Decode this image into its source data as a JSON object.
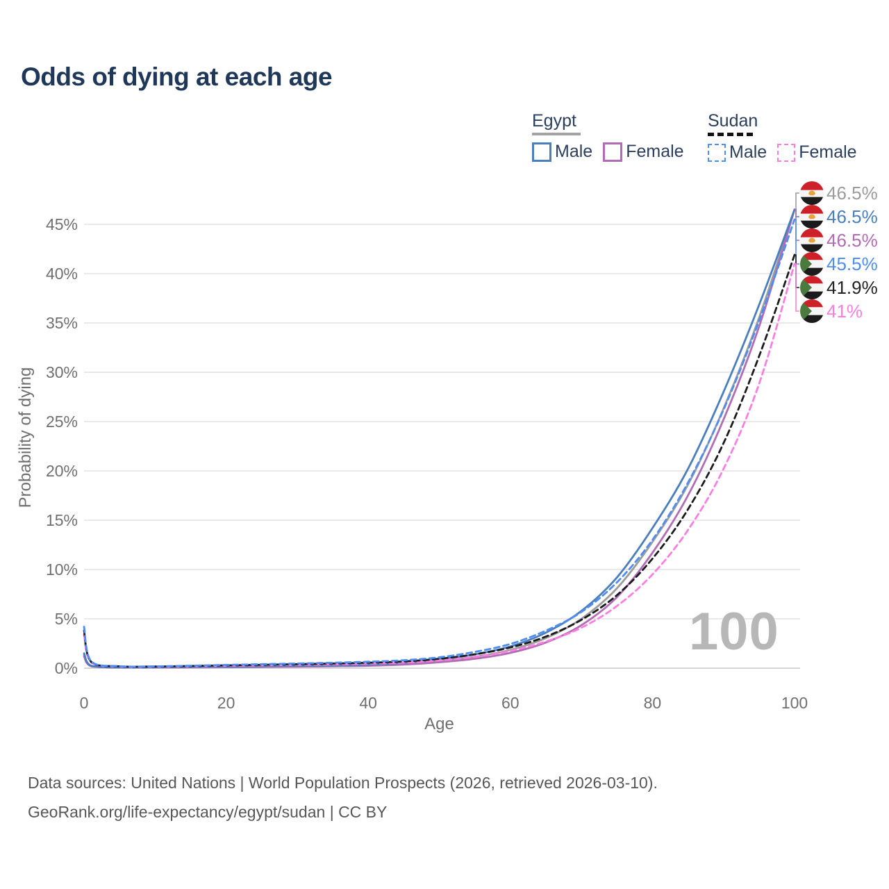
{
  "page": {
    "title": "Odds of dying at each age"
  },
  "legend": {
    "groups": [
      {
        "id": "egypt",
        "label": "Egypt",
        "line_style": "solid",
        "line_color": "#a3a3a3",
        "items": [
          {
            "label": "Male",
            "color": "#4a7ebc",
            "dashed": false
          },
          {
            "label": "Female",
            "color": "#b16cb5",
            "dashed": false
          }
        ]
      },
      {
        "id": "sudan",
        "label": "Sudan",
        "line_style": "dashed",
        "line_color": "#111111",
        "items": [
          {
            "label": "Male",
            "color": "#4f8df2",
            "dashed": true
          },
          {
            "label": "Female",
            "color": "#fc7ee0",
            "dashed": true
          }
        ]
      }
    ]
  },
  "watermark_age": "100",
  "footer": {
    "line1": "Data sources: United Nations | World Population Prospects (2026, retrieved 2026-03-10).",
    "line2": "GeoRank.org/life-expectancy/egypt/sudan | CC BY"
  },
  "chart_data": {
    "type": "line",
    "title": "Odds of dying at each age",
    "xlabel": "Age",
    "ylabel": "Probability of dying",
    "xlim": [
      0,
      100
    ],
    "ylim": [
      0,
      48
    ],
    "xticks": [
      0,
      20,
      40,
      60,
      80,
      100
    ],
    "yticks": [
      {
        "v": 0,
        "label": "0%"
      },
      {
        "v": 5,
        "label": "5%"
      },
      {
        "v": 10,
        "label": "10%"
      },
      {
        "v": 15,
        "label": "15%"
      },
      {
        "v": 20,
        "label": "20%"
      },
      {
        "v": 25,
        "label": "25%"
      },
      {
        "v": 30,
        "label": "30%"
      },
      {
        "v": 35,
        "label": "35%"
      },
      {
        "v": 40,
        "label": "40%"
      },
      {
        "v": 45,
        "label": "45%"
      }
    ],
    "grid": "horizontal",
    "legend_position": "top-right",
    "ages": [
      0,
      1,
      5,
      10,
      15,
      20,
      25,
      30,
      35,
      40,
      45,
      50,
      55,
      60,
      65,
      70,
      75,
      80,
      85,
      90,
      95,
      100
    ],
    "series": [
      {
        "id": "egypt-both",
        "name": "Egypt Both sexes",
        "country": "Egypt",
        "sex": "both",
        "color": "#9c9c9c",
        "label_color": "#9c9c9c",
        "dashed": false,
        "flag": "egypt",
        "end_label": "46.5%",
        "values": [
          1.35,
          0.22,
          0.07,
          0.08,
          0.1,
          0.13,
          0.16,
          0.19,
          0.23,
          0.29,
          0.45,
          0.75,
          1.15,
          1.85,
          3.05,
          5.0,
          8.1,
          12.8,
          18.6,
          26.3,
          35.5,
          46.5
        ]
      },
      {
        "id": "egypt-male",
        "name": "Egypt Male",
        "country": "Egypt",
        "sex": "male",
        "color": "#4a7ebc",
        "label_color": "#4a7ebc",
        "dashed": false,
        "flag": "egypt",
        "end_label": "46.5%",
        "values": [
          1.5,
          0.25,
          0.08,
          0.09,
          0.12,
          0.16,
          0.19,
          0.23,
          0.28,
          0.35,
          0.55,
          0.9,
          1.4,
          2.2,
          3.6,
          5.8,
          9.2,
          14.2,
          20.2,
          28.0,
          36.8,
          46.5
        ]
      },
      {
        "id": "egypt-female",
        "name": "Egypt Female",
        "country": "Egypt",
        "sex": "female",
        "color": "#b16cb5",
        "label_color": "#b16cb5",
        "dashed": false,
        "flag": "egypt",
        "end_label": "46.5%",
        "values": [
          1.2,
          0.2,
          0.06,
          0.07,
          0.08,
          0.1,
          0.12,
          0.15,
          0.19,
          0.24,
          0.36,
          0.6,
          0.95,
          1.55,
          2.6,
          4.35,
          7.2,
          11.7,
          17.5,
          25.2,
          34.6,
          46.5
        ]
      },
      {
        "id": "sudan-male",
        "name": "Sudan Male",
        "country": "Sudan",
        "sex": "male",
        "color": "#4f8df2",
        "label_color": "#4f8df2",
        "dashed": true,
        "flag": "sudan",
        "end_label": "45.5%",
        "values": [
          4.2,
          0.7,
          0.2,
          0.18,
          0.25,
          0.33,
          0.4,
          0.47,
          0.55,
          0.65,
          0.8,
          1.1,
          1.65,
          2.45,
          3.8,
          5.7,
          8.7,
          13.0,
          18.8,
          26.2,
          35.2,
          45.5
        ]
      },
      {
        "id": "sudan-both",
        "name": "Sudan Both sexes",
        "country": "Sudan",
        "sex": "both",
        "color": "#1b1b1b",
        "label_color": "#222222",
        "dashed": true,
        "flag": "sudan",
        "end_label": "41.9%",
        "values": [
          3.8,
          0.65,
          0.18,
          0.16,
          0.22,
          0.28,
          0.34,
          0.4,
          0.47,
          0.55,
          0.68,
          0.95,
          1.4,
          2.1,
          3.2,
          4.9,
          7.4,
          11.1,
          16.1,
          22.8,
          31.6,
          41.9
        ]
      },
      {
        "id": "sudan-female",
        "name": "Sudan Female",
        "country": "Sudan",
        "sex": "female",
        "color": "#fc7ee0",
        "label_color": "#fc7ee0",
        "dashed": true,
        "flag": "sudan",
        "end_label": "41%",
        "values": [
          3.4,
          0.6,
          0.16,
          0.14,
          0.18,
          0.23,
          0.28,
          0.33,
          0.38,
          0.45,
          0.56,
          0.78,
          1.15,
          1.75,
          2.7,
          4.1,
          6.3,
          9.5,
          14.0,
          20.2,
          28.8,
          41.0
        ]
      }
    ]
  }
}
